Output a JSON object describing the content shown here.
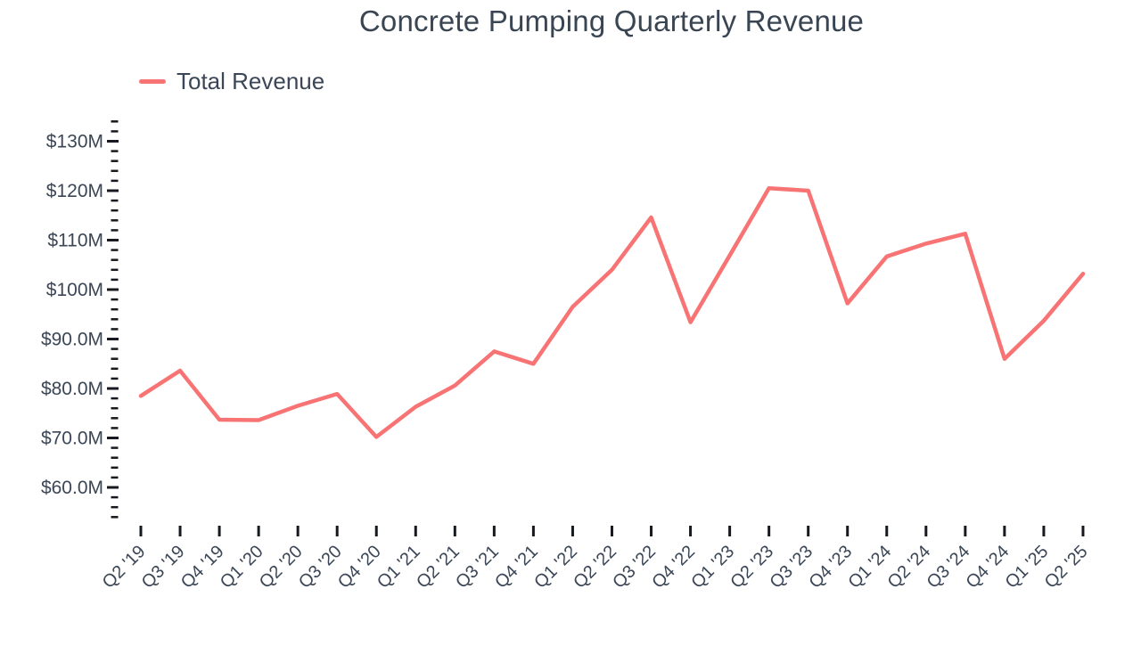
{
  "chart_data": {
    "type": "line",
    "title": "Concrete Pumping Quarterly Revenue",
    "categories": [
      "Q2 '19",
      "Q3 '19",
      "Q4 '19",
      "Q1 '20",
      "Q2 '20",
      "Q3 '20",
      "Q4 '20",
      "Q1 '21",
      "Q2 '21",
      "Q3 '21",
      "Q4 '21",
      "Q1 '22",
      "Q2 '22",
      "Q3 '22",
      "Q4 '22",
      "Q1 '23",
      "Q2 '23",
      "Q3 '23",
      "Q4 '23",
      "Q1 '24",
      "Q2 '24",
      "Q3 '24",
      "Q4 '24",
      "Q1 '25",
      "Q2 '25"
    ],
    "series": [
      {
        "name": "Total Revenue",
        "color": "#f87474",
        "values": [
          78.5,
          83.6,
          73.7,
          73.6,
          76.5,
          78.9,
          70.2,
          76.3,
          80.6,
          87.5,
          85.0,
          96.5,
          104.0,
          114.6,
          93.4,
          106.9,
          120.5,
          120.0,
          97.2,
          106.7,
          109.3,
          111.3,
          86.0,
          93.7,
          103.2
        ]
      }
    ],
    "unit": "USD millions",
    "xlabel": "",
    "ylabel": "",
    "y_axis": {
      "tick_labels": [
        "$130M",
        "$120M",
        "$110M",
        "$100M",
        "$90.0M",
        "$80.0M",
        "$70.0M",
        "$60.0M"
      ],
      "tick_values": [
        130,
        120,
        110,
        100,
        90,
        80,
        70,
        60
      ],
      "minor_tick_step": 2,
      "minor_tick_max": 134,
      "minor_tick_min": 54
    },
    "grid": false,
    "legend_position": "top-left"
  },
  "colors": {
    "accent": "#f87474",
    "text": "#3b4656",
    "title_text": "#3a4553",
    "tick": "#16191f",
    "background": "#ffffff"
  }
}
